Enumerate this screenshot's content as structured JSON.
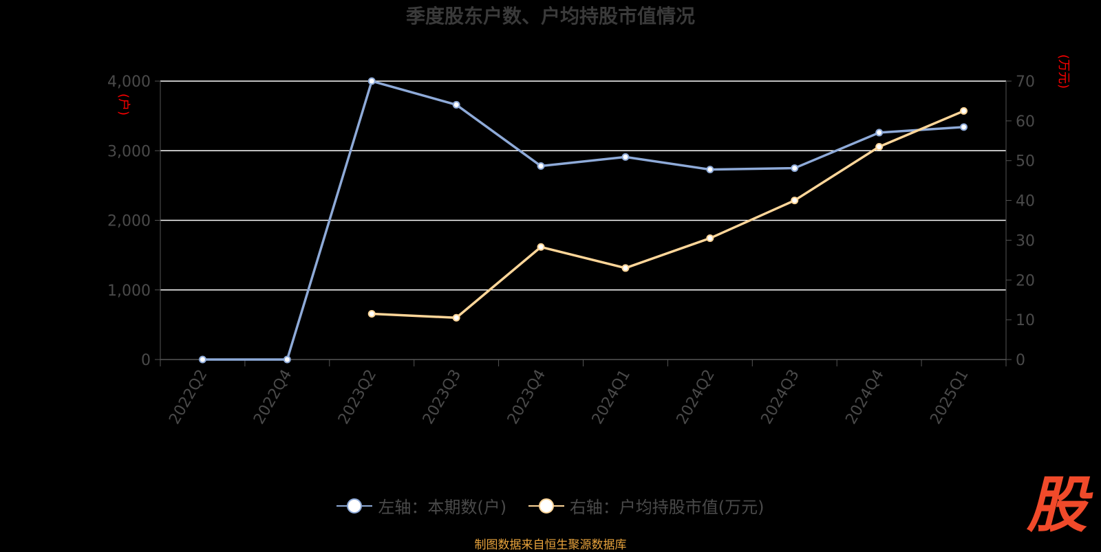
{
  "colors": {
    "series1": "#8eaad8",
    "series2": "#ffd699",
    "unit_label": "#ff0000",
    "axis_text": "#4a4a4a",
    "grid": "#ffffff",
    "source": "#e8a33c",
    "logo": "#f04a2a"
  },
  "logo_text": "股",
  "source_text": "制图数据来自恒生聚源数据库",
  "chart_data": {
    "type": "line",
    "title": "季度股东户数、户均持股市值情况",
    "categories": [
      "2022Q2",
      "2022Q4",
      "2023Q2",
      "2023Q3",
      "2023Q4",
      "2024Q1",
      "2024Q2",
      "2024Q3",
      "2024Q4",
      "2025Q1"
    ],
    "left_axis": {
      "unit_label": "(户)",
      "ylim": [
        0,
        4000
      ],
      "ticks": [
        "0",
        "1,000",
        "2,000",
        "3,000",
        "4,000"
      ],
      "tick_values": [
        0,
        1000,
        2000,
        3000,
        4000
      ]
    },
    "right_axis": {
      "unit_label": "(万元)",
      "ylim": [
        0,
        70
      ],
      "ticks": [
        "0",
        "10",
        "20",
        "30",
        "40",
        "50",
        "60",
        "70"
      ],
      "tick_values": [
        0,
        10,
        20,
        30,
        40,
        50,
        60,
        70
      ]
    },
    "grid": true,
    "legend_position": "bottom",
    "series": [
      {
        "name": "左轴：本期数(户)",
        "axis": "left",
        "values": [
          0,
          0,
          4000,
          3660,
          2780,
          2910,
          2730,
          2750,
          3260,
          3340
        ]
      },
      {
        "name": "右轴：户均持股市值(万元)",
        "axis": "right",
        "values": [
          null,
          null,
          11.5,
          10.5,
          28.3,
          23.0,
          30.5,
          40.0,
          53.5,
          62.5
        ]
      }
    ]
  }
}
